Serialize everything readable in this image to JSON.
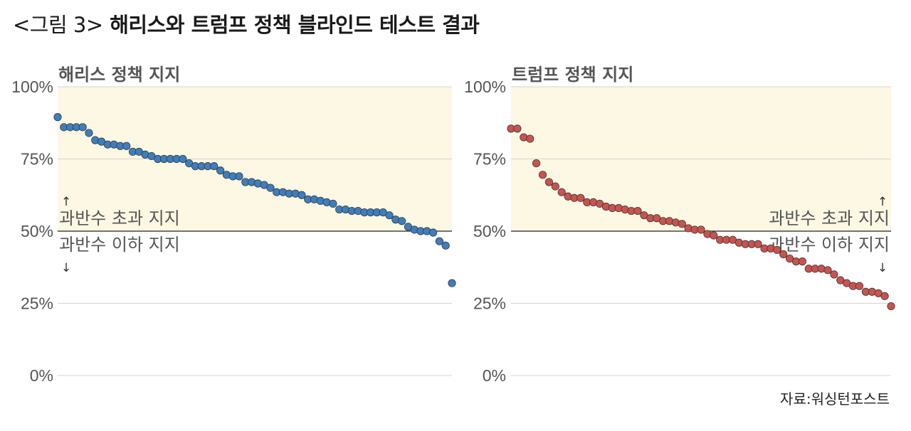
{
  "title": {
    "prefix": "<그림 3>",
    "main": "해리스와 트럼프 정책 블라인드 테스트 결과"
  },
  "source": "자료:워싱턴포스트",
  "chart_data": [
    {
      "type": "scatter",
      "title": "해리스 정책 지지",
      "ylim": [
        0,
        100
      ],
      "yticks": [
        "0%",
        "25%",
        "50%",
        "75%",
        "100%"
      ],
      "color": "#3d7ebf",
      "band_color": "#fcf8e3",
      "above_label": "과반수 초과 지지",
      "below_label": "과반수 이하 지지",
      "up_arrow": "↑",
      "down_arrow": "↓",
      "label_side": "left",
      "values": [
        89.5,
        86,
        86,
        86,
        86,
        84,
        81.5,
        81,
        80,
        80,
        79.5,
        79.5,
        77.5,
        77.5,
        76.5,
        76,
        75,
        75,
        75,
        75,
        75,
        73.5,
        72.5,
        72.5,
        72.5,
        72.5,
        71,
        69.5,
        69,
        69,
        67,
        67,
        66.5,
        66,
        65,
        63.5,
        63.5,
        63,
        63,
        62.5,
        61,
        61,
        60.5,
        60,
        59.5,
        57.5,
        57.5,
        57,
        57,
        56.5,
        56.5,
        56.5,
        56.5,
        55.5,
        54,
        53.5,
        51.5,
        50.5,
        50,
        50,
        49.5,
        46.5,
        45,
        32
      ]
    },
    {
      "type": "scatter",
      "title": "트럼프 정책 지지",
      "ylim": [
        0,
        100
      ],
      "yticks": [
        "0%",
        "25%",
        "50%",
        "75%",
        "100%"
      ],
      "color": "#c9534e",
      "band_color": "#fcf8e3",
      "above_label": "과반수 초과 지지",
      "below_label": "과반수 이하 지지",
      "up_arrow": "↑",
      "down_arrow": "↓",
      "label_side": "right",
      "values": [
        85.5,
        85.5,
        82.5,
        82,
        73.5,
        69.5,
        67,
        65.5,
        63.5,
        62,
        61.5,
        61.5,
        60,
        60,
        59.5,
        58.5,
        58,
        58,
        57.5,
        57,
        57,
        55.5,
        54.5,
        54.5,
        53.5,
        53.5,
        53,
        52.5,
        51,
        50.5,
        50.5,
        49,
        48.5,
        47,
        47,
        47,
        46,
        45.5,
        45.5,
        45.5,
        44,
        44,
        43.5,
        42,
        40.5,
        39.5,
        39.5,
        37,
        37,
        37,
        36.5,
        35,
        33,
        32,
        31,
        31,
        29,
        29,
        28.5,
        27.5,
        24
      ]
    }
  ]
}
